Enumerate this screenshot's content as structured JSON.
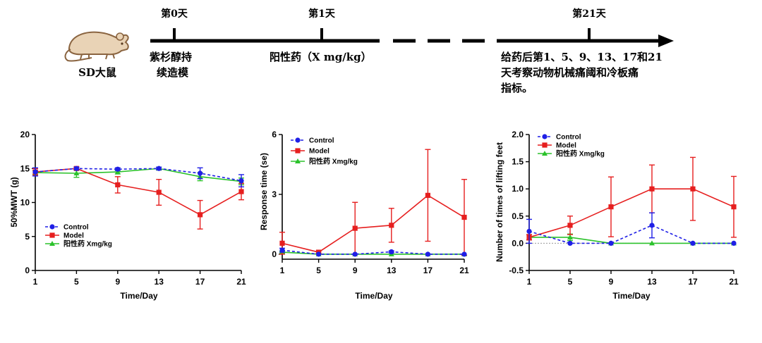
{
  "timeline": {
    "rat_label": "SD大鼠",
    "day0_label": "第0天",
    "day1_label": "第1天",
    "day21_label": "第21天",
    "model_text_line1": "紫杉醇持",
    "model_text_line2": "续造模",
    "drug_text": "阳性药（X mg/kg）",
    "observe_text_line1": "给药后第1、5、9、13、17和21",
    "observe_text_line2": "天考察动物机械痛阈和冷板痛",
    "observe_text_line3": "指标。"
  },
  "colors": {
    "control": "#1f1fe6",
    "model": "#e61f1f",
    "drug": "#2bc22b"
  },
  "chart_data": [
    {
      "type": "line",
      "title": "",
      "xlabel": "Time/Day",
      "ylabel": "50%MWT (g)",
      "x": [
        1,
        5,
        9,
        13,
        17,
        21
      ],
      "xticks": [
        "1",
        "5",
        "9",
        "13",
        "17",
        "21"
      ],
      "ylim": [
        0,
        20
      ],
      "yticks": [
        "0",
        "5",
        "10",
        "15",
        "20"
      ],
      "ytick_values": [
        0,
        5,
        10,
        15,
        20
      ],
      "legend_position": "bottom-left",
      "series": [
        {
          "name": "Control",
          "values": [
            14.5,
            15.0,
            14.9,
            15.0,
            14.3,
            13.2
          ],
          "errors": [
            0.6,
            0.2,
            0.2,
            0.2,
            0.8,
            0.9
          ]
        },
        {
          "name": "Model",
          "values": [
            14.5,
            15.0,
            12.6,
            11.5,
            8.2,
            11.6
          ],
          "errors": [
            0.5,
            0.2,
            1.2,
            1.9,
            2.1,
            1.2
          ]
        },
        {
          "name": "阳性药 Xmg/kg",
          "values": [
            14.4,
            14.3,
            14.5,
            15.0,
            13.8,
            13.1
          ],
          "errors": [
            0.3,
            0.6,
            0.3,
            0.2,
            0.6,
            0.5
          ]
        }
      ]
    },
    {
      "type": "line",
      "title": "",
      "xlabel": "Time/Day",
      "ylabel": "Response time (se)",
      "x": [
        1,
        5,
        9,
        13,
        17,
        21
      ],
      "xticks": [
        "1",
        "5",
        "9",
        "13",
        "17",
        "21"
      ],
      "ylim": [
        -0.25,
        6
      ],
      "yticks": [
        "0",
        "3",
        "6"
      ],
      "ytick_values": [
        0,
        3,
        6
      ],
      "legend_position": "top-left",
      "series": [
        {
          "name": "Control",
          "values": [
            0.2,
            0.0,
            0.0,
            0.12,
            0.0,
            0.0
          ],
          "errors": [
            0.1,
            0.0,
            0.0,
            0.05,
            0.0,
            0.0
          ]
        },
        {
          "name": "Model",
          "values": [
            0.55,
            0.1,
            1.3,
            1.45,
            2.95,
            1.85
          ],
          "errors": [
            0.55,
            0.05,
            1.3,
            0.85,
            2.3,
            1.9
          ]
        },
        {
          "name": "阳性药 Xmg/kg",
          "values": [
            0.1,
            0.0,
            0.0,
            0.0,
            0.0,
            0.0
          ],
          "errors": [
            0.05,
            0.0,
            0.0,
            0.0,
            0.0,
            0.0
          ]
        }
      ]
    },
    {
      "type": "line",
      "title": "",
      "xlabel": "Time/Day",
      "ylabel": "Number of times of lifting feet",
      "x": [
        1,
        5,
        9,
        13,
        17,
        21
      ],
      "xticks": [
        "1",
        "5",
        "9",
        "13",
        "17",
        "21"
      ],
      "ylim": [
        -0.5,
        2.0
      ],
      "yticks": [
        "-0.5",
        "0.0",
        "0.5",
        "1.0",
        "1.5",
        "2.0"
      ],
      "ytick_values": [
        -0.5,
        0.0,
        0.5,
        1.0,
        1.5,
        2.0
      ],
      "legend_position": "top-left",
      "series": [
        {
          "name": "Control",
          "values": [
            0.22,
            0.0,
            0.0,
            0.33,
            0.0,
            0.0
          ],
          "errors": [
            0.22,
            0.0,
            0.0,
            0.23,
            0.0,
            0.0
          ]
        },
        {
          "name": "Model",
          "values": [
            0.11,
            0.33,
            0.67,
            1.0,
            1.0,
            0.67
          ],
          "errors": [
            0.05,
            0.17,
            0.55,
            0.44,
            0.58,
            0.56
          ]
        },
        {
          "name": "阳性药 Xmg/kg",
          "values": [
            0.11,
            0.11,
            0.0,
            0.0,
            0.0,
            0.0
          ],
          "errors": [
            0.05,
            0.06,
            0.0,
            0.0,
            0.0,
            0.0
          ]
        }
      ]
    }
  ]
}
